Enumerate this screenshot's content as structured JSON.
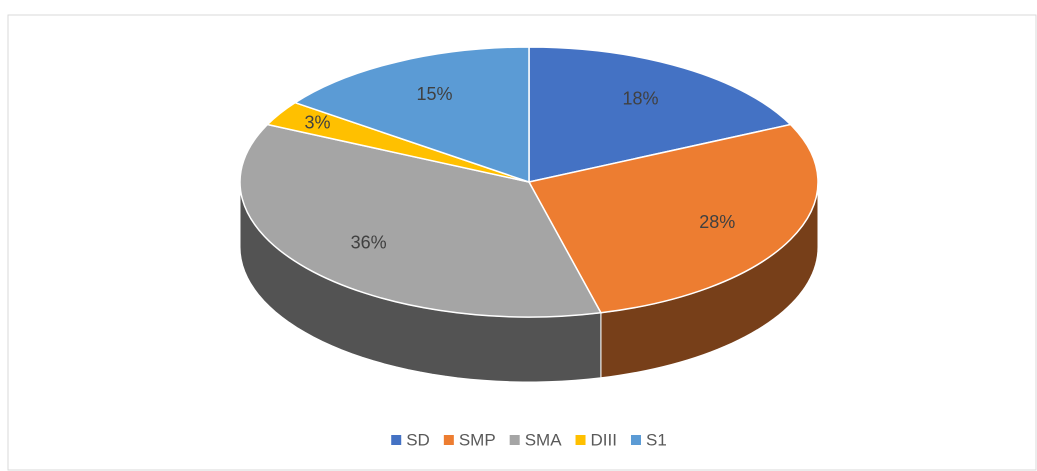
{
  "chart_data": {
    "type": "pie",
    "categories": [
      "SD",
      "SMP",
      "SMA",
      "DIII",
      "S1"
    ],
    "values": [
      18,
      28,
      36,
      3,
      15
    ],
    "value_labels": [
      "18%",
      "28%",
      "36%",
      "3%",
      "15%"
    ],
    "colors": [
      "#4472c4",
      "#ed7d31",
      "#a5a5a5",
      "#ffc000",
      "#5b9bd5"
    ],
    "legend": "bottom"
  }
}
